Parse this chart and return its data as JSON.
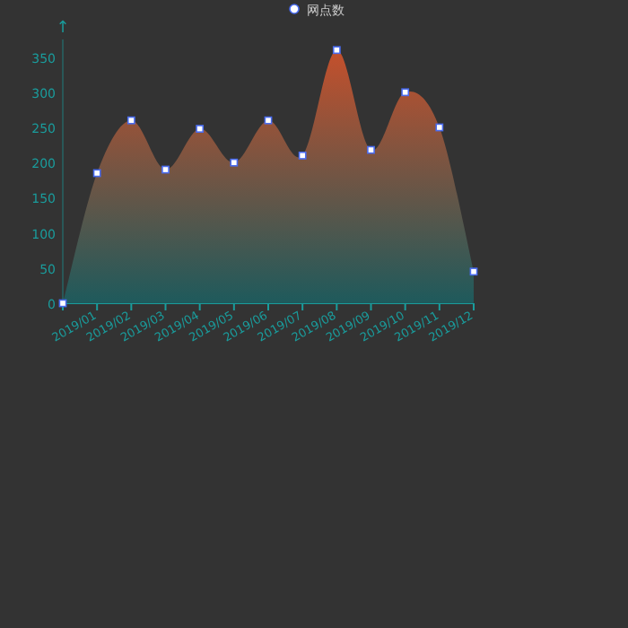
{
  "chart_data": {
    "type": "area",
    "ylabel": "↑",
    "legend": "top",
    "categories": [
      null,
      "2019/01",
      "2019/02",
      "2019/03",
      "2019/04",
      "2019/05",
      "2019/06",
      "2019/07",
      "2019/08",
      "2019/09",
      "2019/10",
      "2019/11",
      "2019/12"
    ],
    "series": [
      {
        "name": "网点数",
        "color": "#c4502c",
        "values": [
          0,
          185,
          260,
          190,
          248,
          200,
          260,
          210,
          360,
          218,
          300,
          250,
          45
        ]
      }
    ],
    "ylim": [
      0,
      375
    ],
    "yticks": [
      0,
      50,
      100,
      150,
      200,
      250,
      300,
      350
    ],
    "marker": "square"
  }
}
